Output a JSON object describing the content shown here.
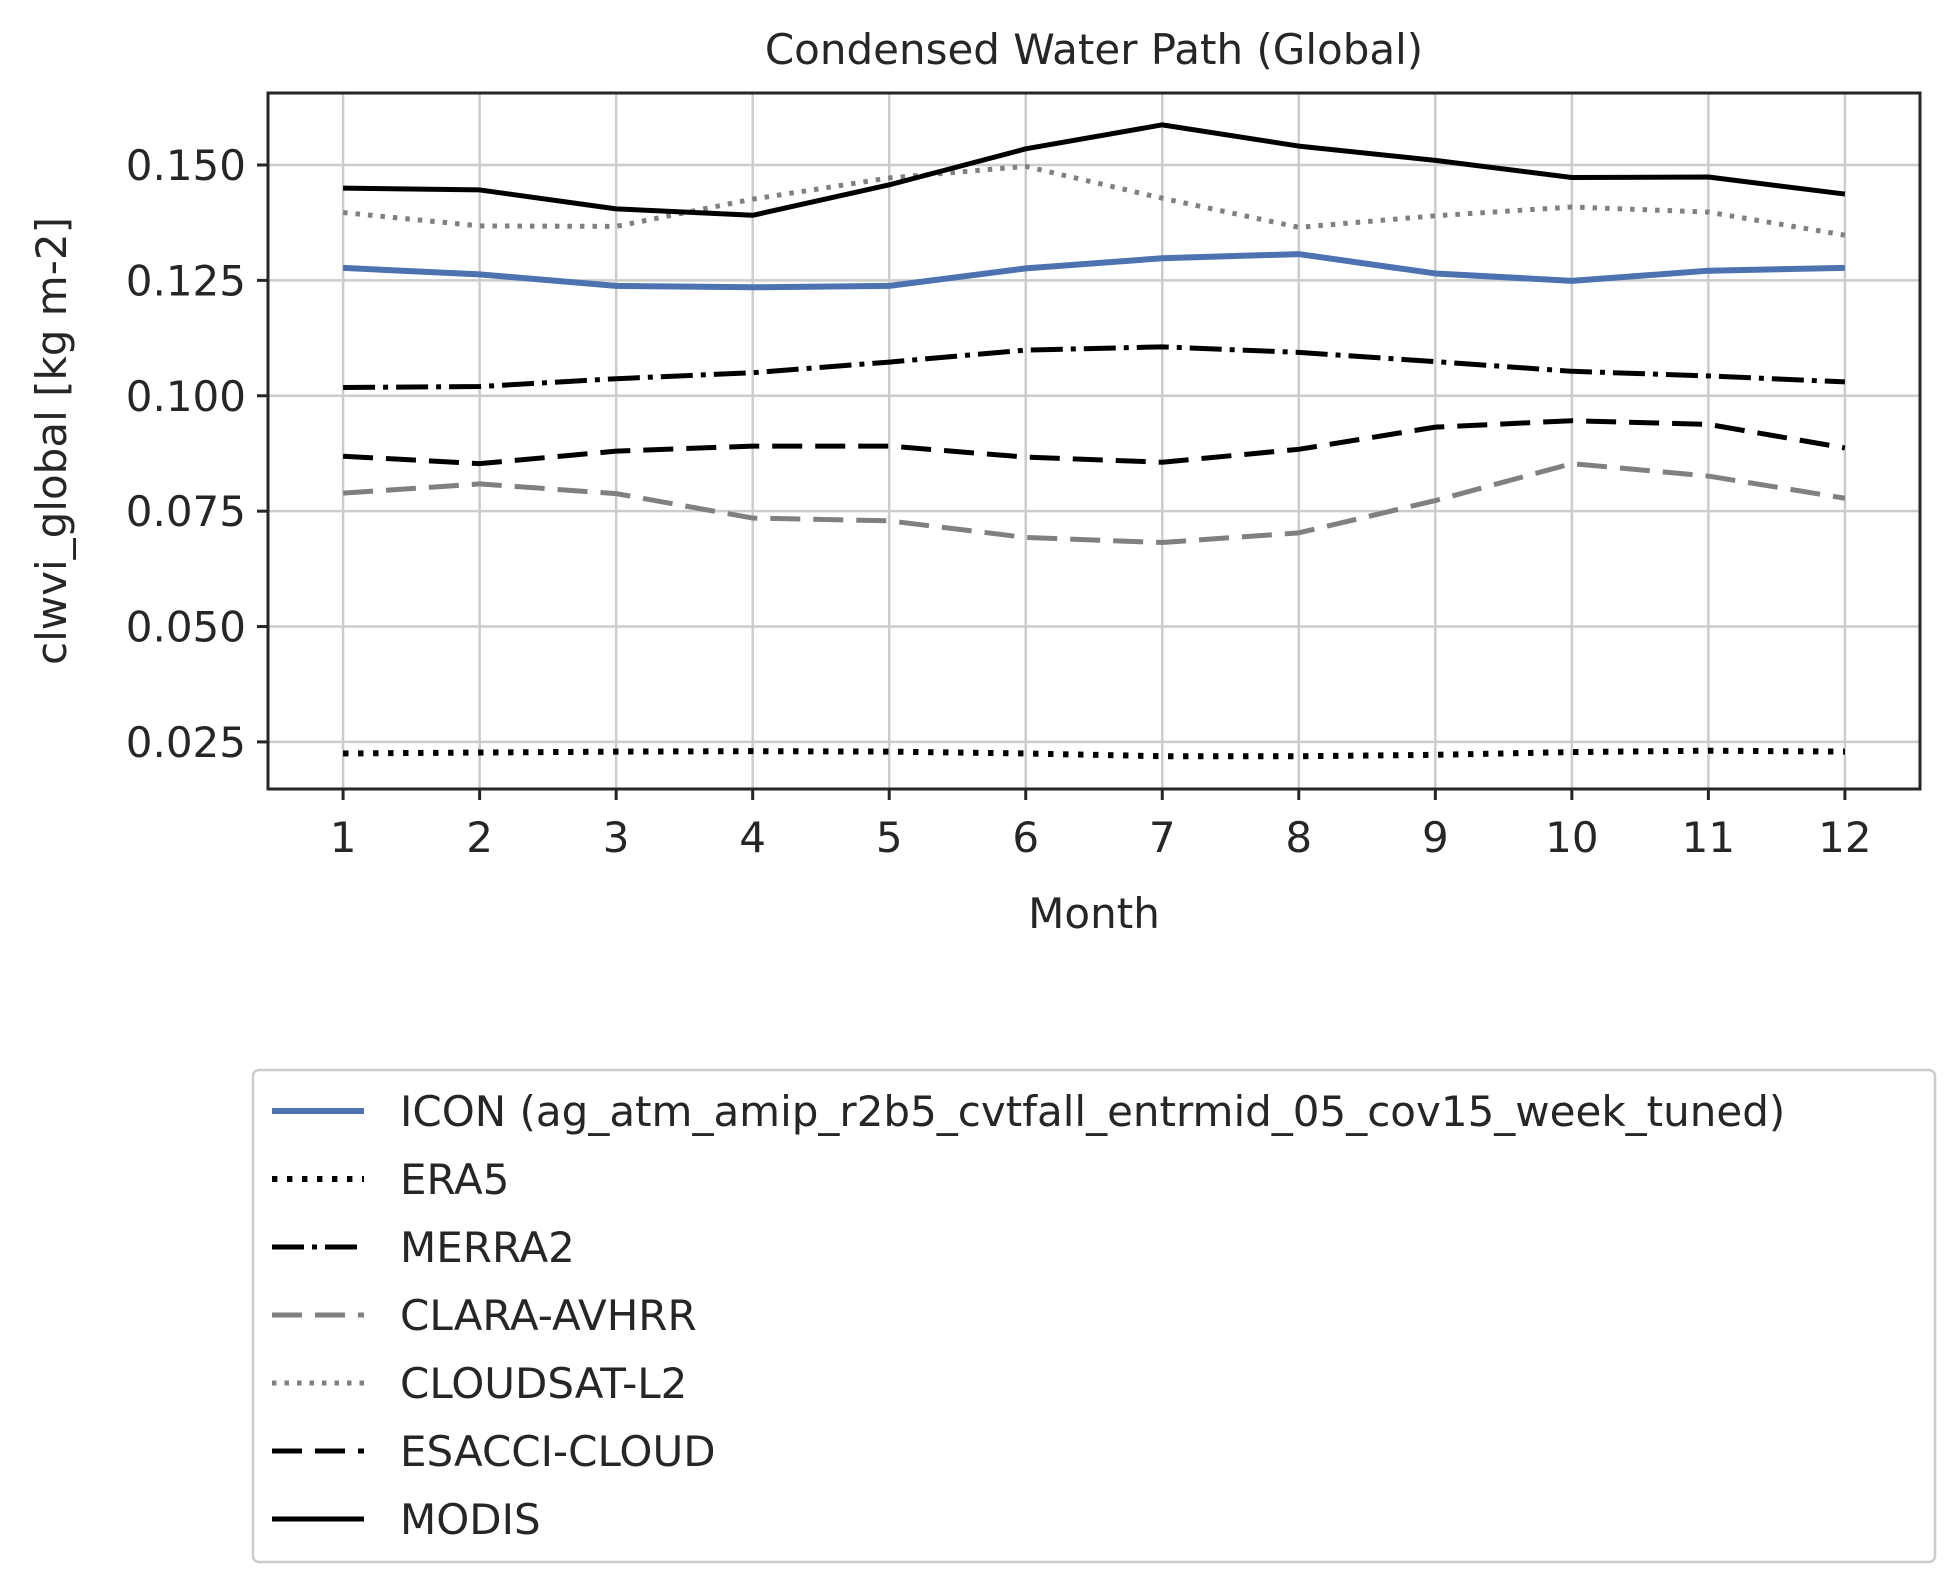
{
  "chart_data": {
    "type": "line",
    "title": "Condensed Water Path (Global)",
    "xlabel": "Month",
    "ylabel": "clwvi_global [kg m-2]",
    "x": [
      1,
      2,
      3,
      4,
      5,
      6,
      7,
      8,
      9,
      10,
      11,
      12
    ],
    "xticks": [
      "1",
      "2",
      "3",
      "4",
      "5",
      "6",
      "7",
      "8",
      "9",
      "10",
      "11",
      "12"
    ],
    "yticks": [
      "0.025",
      "0.050",
      "0.075",
      "0.100",
      "0.125",
      "0.150"
    ],
    "xlim": [
      0.45,
      12.55
    ],
    "ylim": [
      0.0148,
      0.1656
    ],
    "grid": true,
    "legend_position": "below",
    "series": [
      {
        "name": "ICON (ag_atm_amip_r2b5_cvtfall_entrmid_05_cov15_week_tuned)",
        "color": "#4c72b0",
        "style": "solid",
        "width": 6,
        "values": [
          0.1277,
          0.1263,
          0.1238,
          0.1235,
          0.1238,
          0.1276,
          0.1298,
          0.1307,
          0.1265,
          0.1249,
          0.1271,
          0.1277
        ]
      },
      {
        "name": "ERA5",
        "color": "#000000",
        "style": "dotted",
        "width": 6,
        "values": [
          0.0225,
          0.0227,
          0.0229,
          0.023,
          0.0229,
          0.0225,
          0.0219,
          0.0219,
          0.0222,
          0.0228,
          0.0231,
          0.0229
        ]
      },
      {
        "name": "MERRA2",
        "color": "#000000",
        "style": "dashdot",
        "width": 5,
        "values": [
          0.1018,
          0.102,
          0.1037,
          0.105,
          0.1073,
          0.1099,
          0.1106,
          0.1094,
          0.1074,
          0.1053,
          0.1043,
          0.103
        ]
      },
      {
        "name": "CLARA-AVHRR",
        "color": "#808080",
        "style": "dashed",
        "width": 5,
        "values": [
          0.0789,
          0.0809,
          0.0788,
          0.0735,
          0.0729,
          0.0693,
          0.0682,
          0.0703,
          0.0773,
          0.0853,
          0.0826,
          0.0778
        ]
      },
      {
        "name": "CLOUDSAT-L2",
        "color": "#808080",
        "style": "dotted",
        "width": 5,
        "values": [
          0.1397,
          0.1368,
          0.1367,
          0.1426,
          0.1472,
          0.1497,
          0.1428,
          0.1365,
          0.139,
          0.1409,
          0.1398,
          0.1348
        ]
      },
      {
        "name": "ESACCI-CLOUD",
        "color": "#000000",
        "style": "dashed",
        "width": 5,
        "values": [
          0.0869,
          0.0853,
          0.088,
          0.0891,
          0.0891,
          0.0867,
          0.0856,
          0.0884,
          0.0932,
          0.0946,
          0.0938,
          0.0887
        ]
      },
      {
        "name": "MODIS",
        "color": "#000000",
        "style": "solid",
        "width": 5,
        "values": [
          0.145,
          0.1446,
          0.1405,
          0.1391,
          0.1457,
          0.1535,
          0.1587,
          0.1541,
          0.151,
          0.1473,
          0.1474,
          0.1437
        ]
      }
    ]
  }
}
